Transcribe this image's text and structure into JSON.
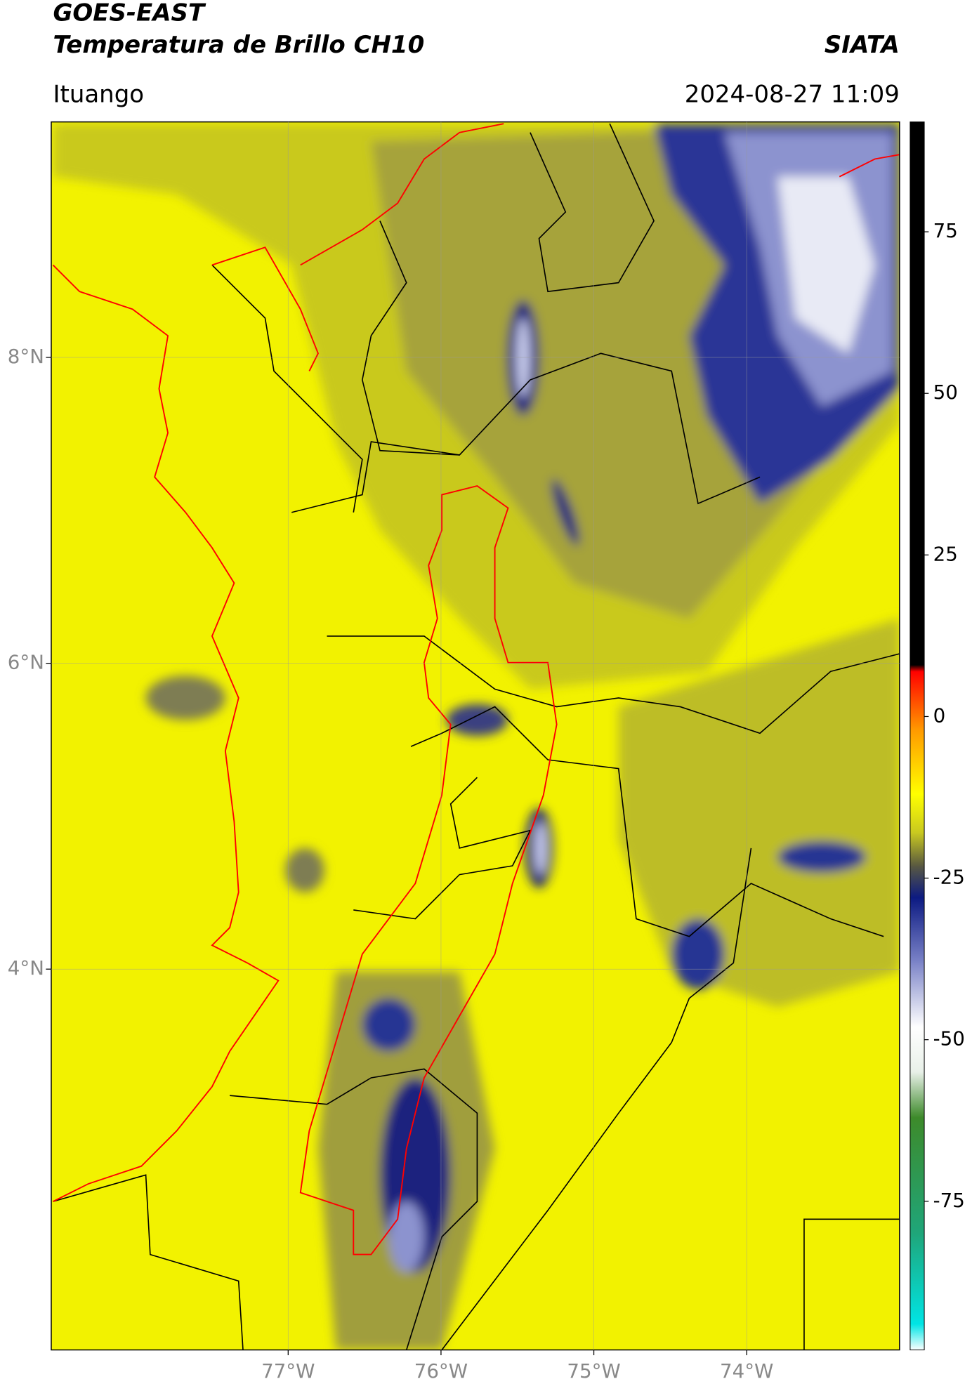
{
  "chart_data": {
    "type": "map",
    "title": "GOES-EAST",
    "subtitle": "Temperatura de Brillo CH10",
    "source": "SIATA",
    "location": "Ituango",
    "datetime": "2024-08-27 11:09",
    "xlim": [
      -78.55,
      -73.0
    ],
    "ylim": [
      1.51,
      9.54
    ],
    "xticks": [
      {
        "value": -77,
        "label": "77°W"
      },
      {
        "value": -76,
        "label": "76°W"
      },
      {
        "value": -75,
        "label": "75°W"
      },
      {
        "value": -74,
        "label": "74°W"
      }
    ],
    "yticks": [
      {
        "value": 8,
        "label": "8°N"
      },
      {
        "value": 6,
        "label": "6°N"
      },
      {
        "value": 4,
        "label": "4°N"
      }
    ],
    "grid": true,
    "colorbar": {
      "lim": [
        -98,
        92
      ],
      "ticks": [
        75,
        50,
        25,
        0,
        -25,
        -50,
        -75
      ],
      "stops": [
        {
          "value": -98,
          "color": "#ffffff"
        },
        {
          "value": -94,
          "color": "#00e5e5"
        },
        {
          "value": -80,
          "color": "#1fa67a"
        },
        {
          "value": -62,
          "color": "#3d8a2a"
        },
        {
          "value": -55,
          "color": "#e8f0e8"
        },
        {
          "value": -48,
          "color": "#ffffff"
        },
        {
          "value": -38,
          "color": "#7c84c8"
        },
        {
          "value": -28,
          "color": "#0c1a82"
        },
        {
          "value": -23,
          "color": "#5a5a40"
        },
        {
          "value": -18,
          "color": "#c8c820"
        },
        {
          "value": -12,
          "color": "#ffff00"
        },
        {
          "value": -2,
          "color": "#ff9900"
        },
        {
          "value": 7,
          "color": "#ff0000"
        },
        {
          "value": 8,
          "color": "#000000"
        },
        {
          "value": 92,
          "color": "#000000"
        }
      ]
    }
  }
}
